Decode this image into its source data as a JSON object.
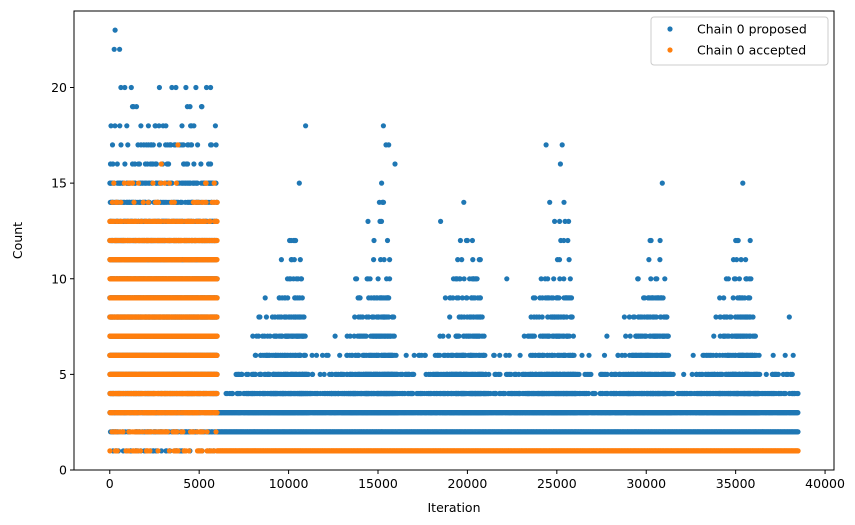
{
  "chart_data": {
    "type": "scatter",
    "title": "",
    "xlabel": "Iteration",
    "ylabel": "Count",
    "xlim": [
      -2000,
      40500
    ],
    "ylim": [
      0,
      24
    ],
    "x_ticks": [
      0,
      5000,
      10000,
      15000,
      20000,
      25000,
      30000,
      35000,
      40000
    ],
    "y_ticks": [
      0,
      5,
      10,
      15,
      20
    ],
    "grid": false,
    "legend_position": "top-right",
    "series": [
      {
        "name": "Chain 0 proposed",
        "color": "#1f77b4",
        "segments": [
          {
            "x_range": [
              0,
              6000
            ],
            "levels": [
              {
                "y": 1,
                "density": 0.25
              },
              {
                "y": 2,
                "density": 0.5
              },
              {
                "y": 3,
                "density": 0.7
              },
              {
                "y": 4,
                "density": 0.8
              },
              {
                "y": 5,
                "density": 0.9
              },
              {
                "y": 6,
                "density": 0.95
              },
              {
                "y": 7,
                "density": 0.95
              },
              {
                "y": 8,
                "density": 0.95
              },
              {
                "y": 9,
                "density": 0.95
              },
              {
                "y": 10,
                "density": 0.95
              },
              {
                "y": 11,
                "density": 0.9
              },
              {
                "y": 12,
                "density": 0.75
              },
              {
                "y": 13,
                "density": 0.6
              },
              {
                "y": 14,
                "density": 0.45
              },
              {
                "y": 15,
                "density": 0.3
              },
              {
                "y": 16,
                "density": 0.18
              },
              {
                "y": 17,
                "density": 0.1
              },
              {
                "y": 18,
                "density": 0.07
              },
              {
                "y": 19,
                "density": 0.05
              },
              {
                "y": 20,
                "density": 0.03
              },
              {
                "y": 21,
                "density": 0.01
              },
              {
                "y": 22,
                "density": 0.006
              }
            ]
          }
        ],
        "clusters": [
          {
            "center": 10500,
            "max_y": 13
          },
          {
            "center": 15500,
            "max_y": 14
          },
          {
            "center": 20500,
            "max_y": 12
          },
          {
            "center": 25500,
            "max_y": 13
          },
          {
            "center": 30800,
            "max_y": 12
          },
          {
            "center": 35700,
            "max_y": 12
          }
        ],
        "points": [
          {
            "x": 300,
            "y": 23
          },
          {
            "x": 250,
            "y": 22
          },
          {
            "x": 550,
            "y": 22
          },
          {
            "x": 10950,
            "y": 18
          },
          {
            "x": 10600,
            "y": 15
          },
          {
            "x": 15300,
            "y": 18
          },
          {
            "x": 15450,
            "y": 17
          },
          {
            "x": 15600,
            "y": 17
          },
          {
            "x": 15950,
            "y": 16
          },
          {
            "x": 15200,
            "y": 15
          },
          {
            "x": 18500,
            "y": 13
          },
          {
            "x": 19800,
            "y": 14
          },
          {
            "x": 24400,
            "y": 17
          },
          {
            "x": 25300,
            "y": 17
          },
          {
            "x": 25200,
            "y": 16
          },
          {
            "x": 24600,
            "y": 14
          },
          {
            "x": 25400,
            "y": 14
          },
          {
            "x": 30900,
            "y": 15
          },
          {
            "x": 35400,
            "y": 15
          },
          {
            "x": 38000,
            "y": 8
          },
          {
            "x": 22200,
            "y": 10
          },
          {
            "x": 8000,
            "y": 7
          },
          {
            "x": 9600,
            "y": 11
          },
          {
            "x": 12600,
            "y": 7
          },
          {
            "x": 34400,
            "y": 8
          },
          {
            "x": 27800,
            "y": 7
          }
        ],
        "baseline": [
          {
            "y": 2,
            "x_range": [
              6000,
              38500
            ]
          },
          {
            "y": 3,
            "x_range": [
              6000,
              38500
            ],
            "density": 0.92
          },
          {
            "y": 4,
            "x_range": [
              6500,
              38500
            ],
            "density": 0.45
          },
          {
            "y": 5,
            "x_range": [
              7000,
              38500
            ],
            "density": 0.18
          },
          {
            "y": 6,
            "x_range": [
              8000,
              38500
            ],
            "density": 0.05
          }
        ]
      },
      {
        "name": "Chain 0 accepted",
        "color": "#ff7f0e",
        "segments": [
          {
            "x_range": [
              0,
              6000
            ],
            "levels": [
              {
                "y": 1,
                "density": 0.15
              },
              {
                "y": 2,
                "density": 0.3
              },
              {
                "y": 3,
                "density": 0.6
              },
              {
                "y": 4,
                "density": 0.85
              },
              {
                "y": 5,
                "density": 1.0
              },
              {
                "y": 6,
                "density": 1.0
              },
              {
                "y": 7,
                "density": 1.0
              },
              {
                "y": 8,
                "density": 1.0
              },
              {
                "y": 9,
                "density": 1.0
              },
              {
                "y": 10,
                "density": 1.0
              },
              {
                "y": 11,
                "density": 0.9
              },
              {
                "y": 12,
                "density": 0.6
              },
              {
                "y": 13,
                "density": 0.3
              },
              {
                "y": 14,
                "density": 0.12
              },
              {
                "y": 15,
                "density": 0.04
              },
              {
                "y": 16,
                "density": 0.01
              },
              {
                "y": 17,
                "density": 0.005
              }
            ]
          }
        ],
        "baseline": [
          {
            "y": 1,
            "x_range": [
              6000,
              38500
            ]
          }
        ]
      }
    ]
  }
}
